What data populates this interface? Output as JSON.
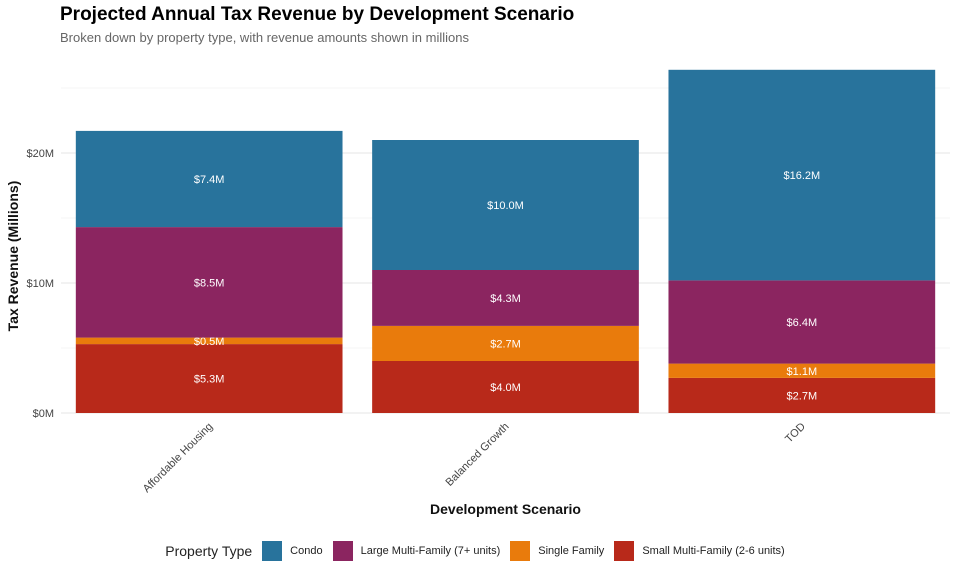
{
  "title": "Projected Annual Tax Revenue by Development Scenario",
  "subtitle": "Broken down by property type, with revenue amounts shown in millions",
  "chart_data": {
    "type": "bar",
    "stacked": true,
    "xlabel": "Development Scenario",
    "ylabel": "Tax Revenue (Millions)",
    "categories": [
      "Affordable Housing",
      "Balanced Growth",
      "TOD"
    ],
    "ylim": [
      0,
      26
    ],
    "yticks": [
      0,
      10,
      20
    ],
    "ytick_labels": [
      "$0M",
      "$10M",
      "$20M"
    ],
    "grid": true,
    "legend_position": "bottom",
    "legend_title": "Property Type",
    "series": [
      {
        "name": "Small Multi-Family (2-6 units)",
        "color": "#B8291A",
        "values": [
          5.3,
          4.0,
          2.7
        ],
        "labels": [
          "$5.3M",
          "$4.0M",
          "$2.7M"
        ]
      },
      {
        "name": "Single Family",
        "color": "#E97B0C",
        "values": [
          0.5,
          2.7,
          1.1
        ],
        "labels": [
          "$0.5M",
          "$2.7M",
          "$1.1M"
        ]
      },
      {
        "name": "Large Multi-Family (7+ units)",
        "color": "#8B2560",
        "values": [
          8.5,
          4.3,
          6.4
        ],
        "labels": [
          "$8.5M",
          "$4.3M",
          "$6.4M"
        ]
      },
      {
        "name": "Condo",
        "color": "#28739C",
        "values": [
          7.4,
          10.0,
          16.2
        ],
        "labels": [
          "$7.4M",
          "$10.0M",
          "$16.2M"
        ]
      }
    ],
    "legend_order": [
      "Condo",
      "Large Multi-Family (7+ units)",
      "Single Family",
      "Small Multi-Family (2-6 units)"
    ]
  }
}
